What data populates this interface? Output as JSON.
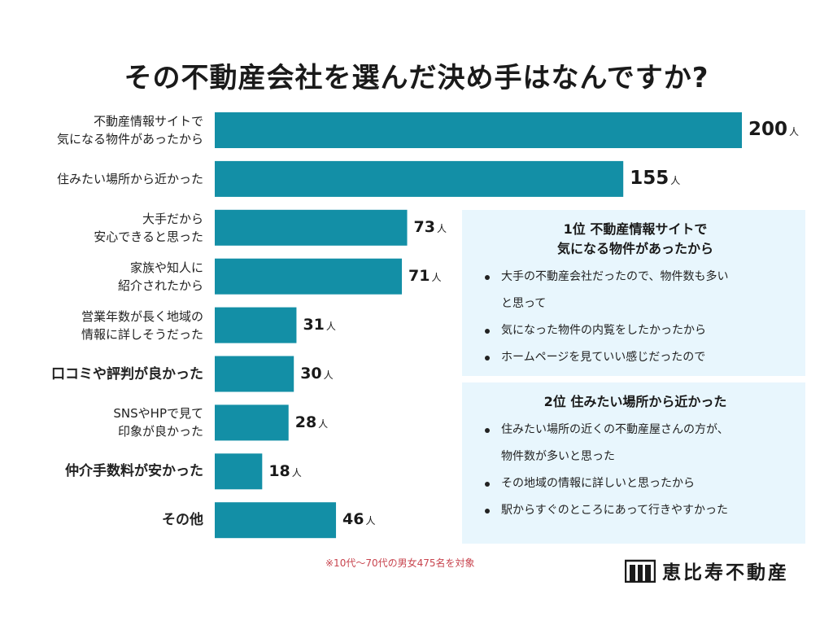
{
  "colors": {
    "bar": "#138fa6",
    "box_bg": "#e8f6fd",
    "note": "#c8444e"
  },
  "title": "その不動産会社を選んだ決め手はなんですか?",
  "chart_data": {
    "type": "bar",
    "orientation": "horizontal",
    "title": "その不動産会社を選んだ決め手はなんですか?",
    "unit": "人",
    "xlim": [
      0,
      200
    ],
    "categories": [
      {
        "lines": [
          "不動産情報サイトで",
          "気になる物件があったから"
        ],
        "value": 200,
        "value_label": "200",
        "emphasis": true
      },
      {
        "lines": [
          "住みたい場所から近かった"
        ],
        "value": 155,
        "value_label": "155",
        "emphasis": false
      },
      {
        "lines": [
          "大手だから",
          "安心できると思った"
        ],
        "value": 73,
        "value_label": "73",
        "emphasis": false
      },
      {
        "lines": [
          "家族や知人に",
          "紹介されたから"
        ],
        "value": 71,
        "value_label": "71",
        "emphasis": false
      },
      {
        "lines": [
          "営業年数が長く地域の",
          "情報に詳しそうだった"
        ],
        "value": 31,
        "value_label": "31",
        "emphasis": false
      },
      {
        "lines": [
          "口コミや評判が良かった"
        ],
        "value": 30,
        "value_label": "30",
        "emphasis": false,
        "big": true
      },
      {
        "lines": [
          "SNSやHPで見て",
          "印象が良かった"
        ],
        "value": 28,
        "value_label": "28",
        "emphasis": false
      },
      {
        "lines": [
          "仲介手数料が安かった"
        ],
        "value": 18,
        "value_label": "18",
        "emphasis": false,
        "big": true
      },
      {
        "lines": [
          "その他"
        ],
        "value": 46,
        "value_label": "46",
        "emphasis": false,
        "big": true
      }
    ]
  },
  "box1": {
    "title_lines": [
      "1位 不動産情報サイトで",
      "気になる物件があったから"
    ],
    "items": [
      "大手の不動産会社だったので、物件数も多い",
      "と思って",
      "気になった物件の内覧をしたかったから",
      "ホームページを見ていい感じだったので"
    ]
  },
  "box2": {
    "title_lines": [
      "2位 住みたい場所から近かった"
    ],
    "items": [
      "住みたい場所の近くの不動産屋さんの方が、",
      "物件数が多いと思った",
      "その地域の情報に詳しいと思ったから",
      "駅からすぐのところにあって行きやすかった"
    ]
  },
  "note": "※10代〜70代の男女475名を対象",
  "logo": {
    "text": "恵比寿不動産",
    "icon": "building-icon"
  }
}
